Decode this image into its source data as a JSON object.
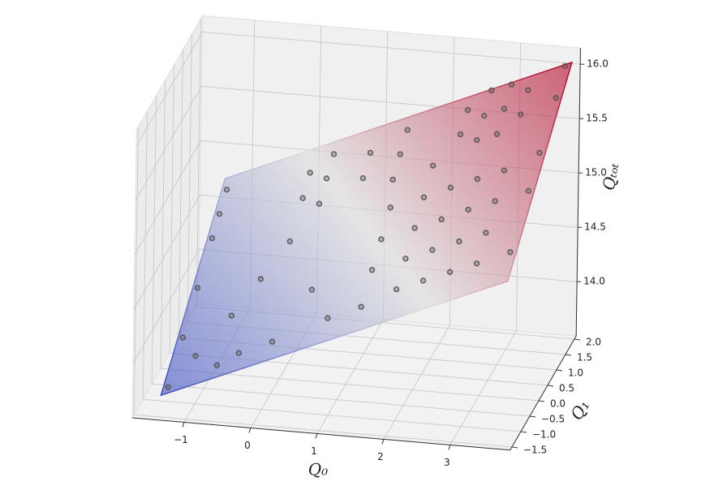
{
  "chart_data": {
    "type": "surface3d",
    "xlabel": "Q₀",
    "ylabel": "Q₁",
    "zlabel": "Qₜₒₜ",
    "xlim": [
      -1.78,
      3.9
    ],
    "ylim": [
      -1.6,
      2.1
    ],
    "zlim": [
      13.5,
      16.15
    ],
    "xticks": [
      {
        "value": -1,
        "label": "−1"
      },
      0,
      1,
      2,
      3
    ],
    "yticks": [
      {
        "value": -1.5,
        "label": "−1.5"
      },
      {
        "value": -1.0,
        "label": "−1.0"
      },
      {
        "value": -0.5,
        "label": "−0.5"
      },
      {
        "value": 0.0,
        "label": "0.0"
      },
      0.5,
      {
        "value": 1.0,
        "label": "1.0"
      },
      1.5,
      {
        "value": 2.0,
        "label": "2.0"
      }
    ],
    "zticks": [
      {
        "value": 14.0,
        "label": "14.0"
      },
      14.5,
      {
        "value": 15.0,
        "label": "15.0"
      },
      15.5,
      {
        "value": 16.0,
        "label": "16.0"
      }
    ],
    "grid": true,
    "surface": {
      "x": [
        -1.38,
        3.8
      ],
      "y": [
        -1.5,
        2.0
      ],
      "z": [
        [
          13.7,
          14.7
        ],
        [
          15.02,
          16.04
        ]
      ],
      "colors": [
        "#3b4cc0",
        "#dddddd",
        "#b40426"
      ],
      "opacity": 0.6
    },
    "marker_color": "#555555",
    "points": {
      "x": [
        -1.3,
        -1.3,
        -1.3,
        -1.3,
        -1.3,
        -1.3,
        -1.0,
        -0.6,
        -0.3,
        -0.6,
        -0.3,
        0.0,
        0.0,
        0.0,
        0.3,
        0.3,
        0.3,
        0.2,
        0.6,
        0.9,
        0.9,
        1.0,
        1.4,
        1.4,
        1.4,
        1.5,
        1.5,
        1.5,
        1.5,
        2.0,
        2.0,
        2.0,
        2.0,
        2.0,
        2.3,
        2.3,
        2.4,
        2.4,
        2.4,
        2.4,
        2.6,
        2.6,
        2.6,
        2.8,
        2.8,
        2.8,
        2.8,
        2.9,
        2.9,
        2.9,
        3.2,
        3.2,
        3.2,
        3.2,
        3.2,
        3.2,
        3.7,
        3.7,
        3.7,
        3.7,
        3.7
      ],
      "y": [
        -1.4,
        -0.6,
        0.2,
        1.0,
        1.4,
        1.8,
        -1.0,
        -1.3,
        -1.2,
        -0.5,
        0.0,
        0.5,
        1.2,
        1.6,
        1.0,
        1.4,
        1.8,
        -1.2,
        -0.5,
        1.2,
        1.6,
        -1.1,
        1.0,
        1.4,
        1.8,
        -1.1,
        -0.5,
        0.0,
        0.5,
        -1.0,
        -0.5,
        0.0,
        0.5,
        1.0,
        1.4,
        1.8,
        -1.0,
        -0.5,
        0.0,
        0.5,
        1.2,
        1.6,
        2.0,
        -1.0,
        -0.5,
        0.0,
        0.5,
        1.2,
        1.6,
        2.0,
        -1.0,
        -0.5,
        0.0,
        0.5,
        1.4,
        1.8,
        -1.0,
        0.0,
        0.6,
        1.5,
        2.0
      ],
      "z": [
        13.75,
        13.98,
        14.21,
        14.44,
        14.55,
        14.66,
        13.94,
        13.96,
        14.06,
        14.19,
        14.4,
        14.62,
        14.82,
        14.94,
        14.84,
        14.96,
        15.07,
        14.19,
        14.49,
        15.05,
        15.17,
        14.42,
        15.12,
        15.24,
        15.35,
        14.55,
        14.72,
        14.86,
        15.01,
        14.71,
        14.85,
        14.99,
        15.13,
        15.28,
        15.47,
        15.58,
        14.81,
        14.95,
        15.09,
        15.24,
        15.49,
        15.6,
        15.72,
        14.91,
        15.05,
        15.2,
        15.34,
        15.56,
        15.68,
        15.79,
        15.01,
        15.15,
        15.3,
        15.44,
        15.7,
        15.81,
        15.14,
        15.42,
        15.6,
        15.85,
        16.0
      ]
    }
  }
}
